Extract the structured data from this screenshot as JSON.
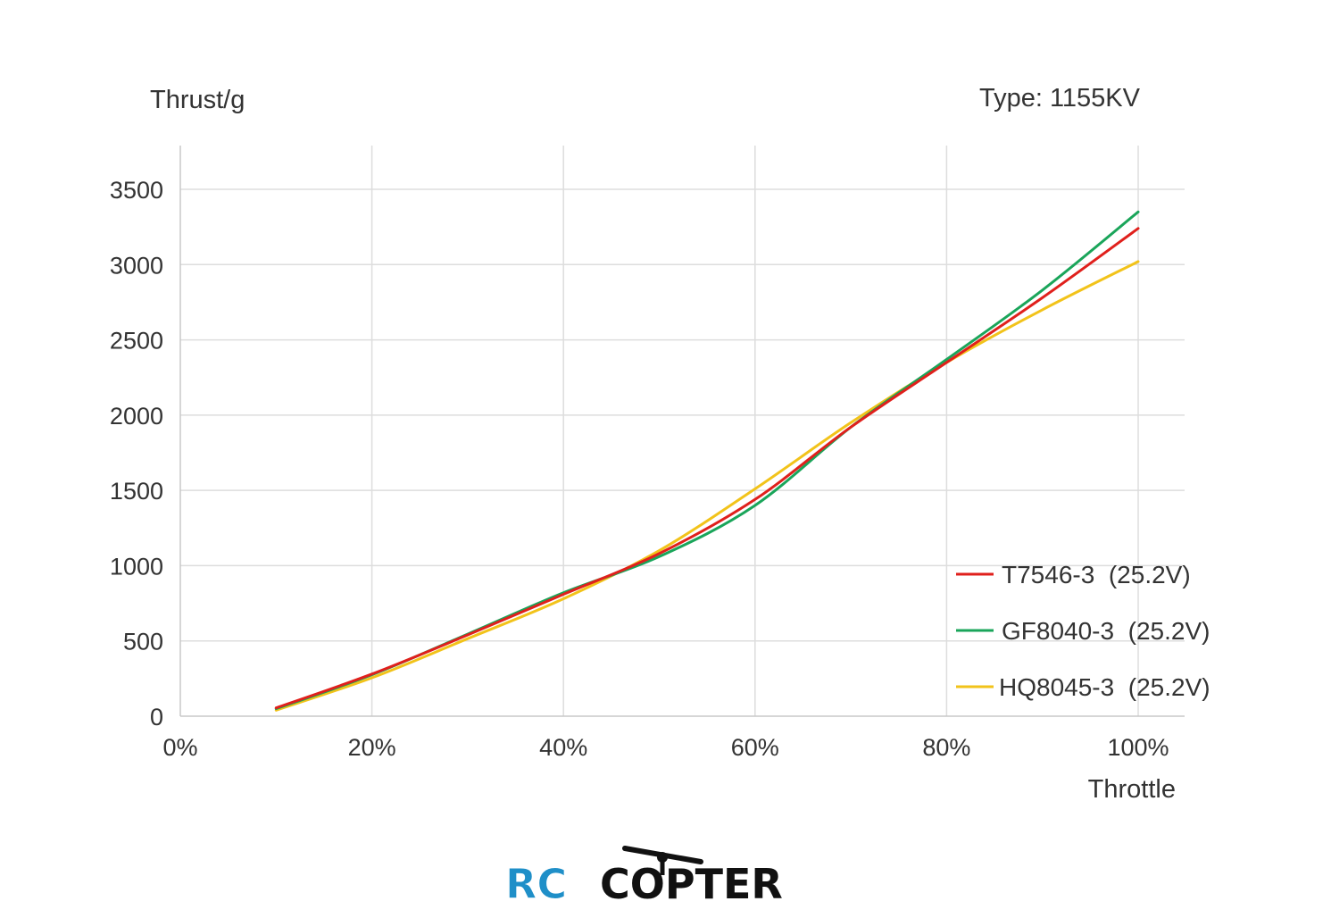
{
  "chart_data": {
    "type": "line",
    "ylabel": "Thrust/g",
    "xlabel": "Throttle",
    "annotation": "Type: 1155KV",
    "xlim": [
      0,
      100
    ],
    "ylim": [
      0,
      3500
    ],
    "x_ticks": [
      "0%",
      "20%",
      "40%",
      "60%",
      "80%",
      "100%"
    ],
    "y_ticks": [
      "0",
      "500",
      "1000",
      "1500",
      "2000",
      "2500",
      "3000",
      "3500"
    ],
    "x_tick_values": [
      0,
      20,
      40,
      60,
      80,
      100
    ],
    "y_tick_values": [
      0,
      500,
      1000,
      1500,
      2000,
      2500,
      3000,
      3500
    ],
    "grid": true,
    "legend_position": "bottom-right",
    "x": [
      10,
      20,
      30,
      40,
      50,
      60,
      70,
      80,
      90,
      100
    ],
    "series": [
      {
        "name": "T7546-3  (25.2V)",
        "color": "#e0201c",
        "values": [
          55,
          280,
          540,
          810,
          1080,
          1440,
          1920,
          2350,
          2780,
          3240
        ]
      },
      {
        "name": "GF8040-3  (25.2V)",
        "color": "#1aa55a",
        "values": [
          50,
          275,
          545,
          820,
          1060,
          1400,
          1920,
          2370,
          2830,
          3350
        ]
      },
      {
        "name": "HQ8045-3  (25.2V)",
        "color": "#f2c31a",
        "values": [
          40,
          255,
          515,
          780,
          1100,
          1510,
          1950,
          2350,
          2700,
          3020
        ]
      }
    ]
  },
  "watermark": {
    "logo_part1": "RC",
    "logo_part2": "COPTER",
    "colors": {
      "rc": "#1f8fc8",
      "copter": "#111111"
    }
  }
}
